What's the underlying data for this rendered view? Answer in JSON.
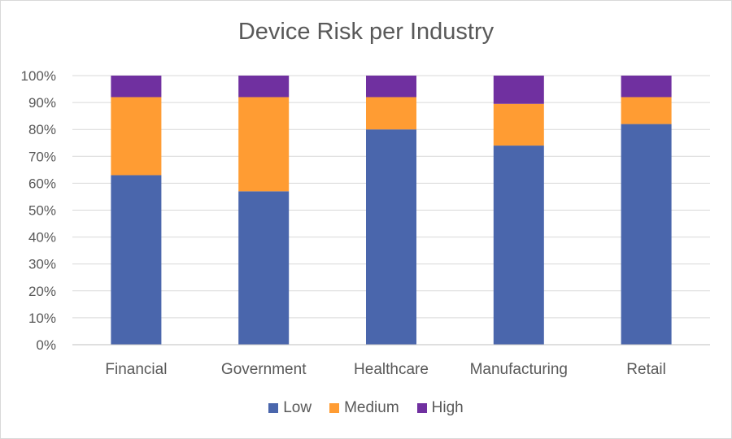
{
  "chart_data": {
    "type": "bar",
    "stacked": true,
    "percent": true,
    "title": "Device Risk per Industry",
    "xlabel": "",
    "ylabel": "",
    "categories": [
      "Financial",
      "Government",
      "Healthcare",
      "Manufacturing",
      "Retail"
    ],
    "series": [
      {
        "name": "Low",
        "color": "#4a66ac",
        "values": [
          63,
          57,
          80,
          74,
          82
        ]
      },
      {
        "name": "Medium",
        "color": "#ff9c33",
        "values": [
          29,
          35,
          12,
          15.5,
          10
        ]
      },
      {
        "name": "High",
        "color": "#7030a0",
        "values": [
          8,
          8,
          8,
          10.5,
          8
        ]
      }
    ],
    "ylim": [
      0,
      100
    ],
    "yticks": [
      0,
      10,
      20,
      30,
      40,
      50,
      60,
      70,
      80,
      90,
      100
    ],
    "ytick_suffix": "%",
    "grid": true,
    "legend_position": "bottom"
  }
}
